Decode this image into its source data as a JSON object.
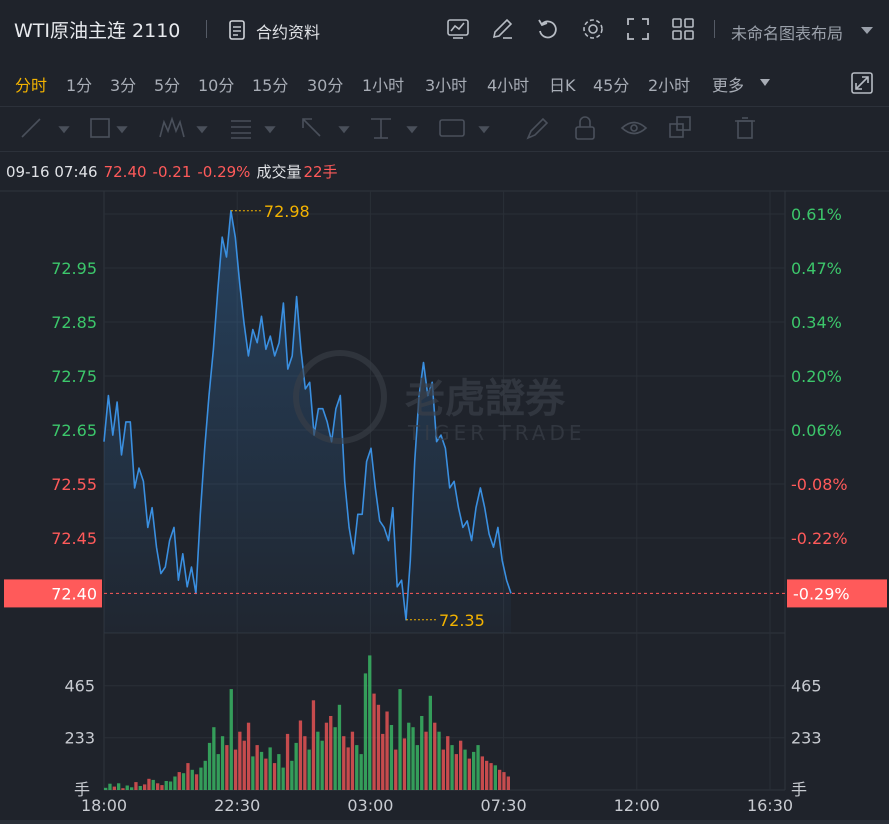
{
  "header": {
    "title": "WTI原油主连 2110",
    "doc_label": "合约资料",
    "layout_name": "未命名图表布局",
    "tools": [
      "indicator-icon",
      "edit-icon",
      "undo-icon",
      "settings-icon",
      "fullscreen-icon",
      "grid-layout-icon"
    ]
  },
  "periods": [
    "分时",
    "1分",
    "3分",
    "5分",
    "10分",
    "15分",
    "30分",
    "1小时",
    "3小时",
    "4小时",
    "日K",
    "45分",
    "2小时",
    "更多"
  ],
  "active_period": "分时",
  "info": {
    "datetime": "09-16 07:46",
    "price": "72.40",
    "change": "-0.21",
    "change_pct": "-0.29%",
    "volume_label": "成交量",
    "volume": "22手"
  },
  "colors": {
    "up": "#3cc76b",
    "down": "#ff5a5a",
    "line": "#3a8fe0",
    "accent": "#f3b300"
  },
  "watermark": {
    "cn": "老虎證券",
    "en": "TIGER TRADE"
  },
  "chart_data": {
    "type": "line",
    "x_ticks": [
      "18:00",
      "22:30",
      "03:00",
      "07:30",
      "12:00",
      "16:30"
    ],
    "price_ticks": [
      "72.95",
      "72.85",
      "72.75",
      "72.65",
      "72.55",
      "72.45"
    ],
    "pct_ticks": [
      "0.61%",
      "0.47%",
      "0.34%",
      "0.20%",
      "0.06%",
      "-0.08%",
      "-0.22%"
    ],
    "current_price": "72.40",
    "current_pct": "-0.29%",
    "high_label": "72.98",
    "low_label": "72.35",
    "ylim": [
      72.34,
      73.01
    ],
    "volume_ticks": [
      "465",
      "233"
    ],
    "volume_unit": "手",
    "volume_max": 700,
    "series": [
      {
        "values": [
          72.63,
          72.7,
          72.64,
          72.69,
          72.61,
          72.66,
          72.66,
          72.56,
          72.59,
          72.57,
          72.5,
          72.53,
          72.47,
          72.43,
          72.44,
          72.48,
          72.5,
          72.42,
          72.46,
          72.41,
          72.44,
          72.4,
          72.52,
          72.62,
          72.7,
          72.77,
          72.86,
          72.94,
          72.91,
          72.98,
          72.94,
          72.87,
          72.81,
          72.76,
          72.8,
          72.78,
          72.82,
          72.77,
          72.79,
          72.76,
          72.78,
          72.84,
          72.74,
          72.76,
          72.85,
          72.77,
          72.71,
          72.72,
          72.64,
          72.68,
          72.68,
          72.66,
          72.63,
          72.68,
          72.7,
          72.57,
          72.5,
          72.46,
          72.52,
          72.52,
          72.6,
          72.62,
          72.56,
          72.51,
          72.5,
          72.48,
          72.53,
          72.41,
          72.42,
          72.36,
          72.45,
          72.6,
          72.7,
          72.75,
          72.7,
          72.72,
          72.63,
          72.64,
          72.62,
          72.56,
          72.57,
          72.53,
          72.5,
          72.51,
          72.48,
          72.53,
          72.56,
          72.53,
          72.49,
          72.47,
          72.5,
          72.45,
          72.42,
          72.4
        ]
      }
    ],
    "volume": [
      10,
      28,
      15,
      30,
      8,
      20,
      12,
      35,
      18,
      25,
      50,
      45,
      30,
      22,
      40,
      38,
      60,
      80,
      75,
      120,
      90,
      70,
      100,
      130,
      210,
      280,
      160,
      240,
      200,
      450,
      180,
      260,
      220,
      300,
      150,
      200,
      170,
      140,
      190,
      120,
      160,
      100,
      250,
      130,
      210,
      310,
      240,
      180,
      400,
      260,
      220,
      300,
      330,
      280,
      380,
      240,
      190,
      260,
      200,
      160,
      520,
      600,
      430,
      380,
      250,
      350,
      290,
      180,
      450,
      230,
      300,
      280,
      200,
      330,
      260,
      420,
      300,
      260,
      180,
      240,
      200,
      160,
      220,
      180,
      140,
      170,
      200,
      150,
      130,
      120,
      110,
      90,
      80,
      60
    ]
  }
}
